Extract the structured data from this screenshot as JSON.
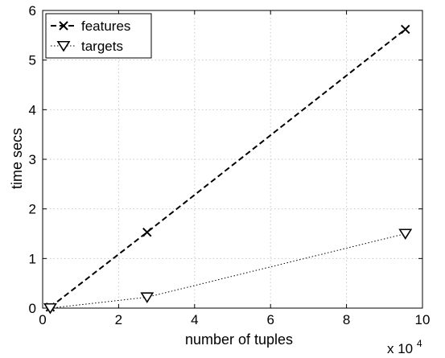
{
  "chart_data": {
    "type": "line",
    "xlabel": "number of tuples",
    "ylabel": "time secs",
    "x_multiplier": "x 10",
    "x_multiplier_exponent": "4",
    "xlim": [
      0,
      100000
    ],
    "ylim": [
      0,
      6
    ],
    "x_ticks": [
      0,
      20000,
      40000,
      60000,
      80000,
      100000
    ],
    "x_tick_labels": [
      "0",
      "2",
      "4",
      "6",
      "8",
      "10"
    ],
    "y_ticks": [
      0,
      1,
      2,
      3,
      4,
      5,
      6
    ],
    "y_tick_labels": [
      "0",
      "1",
      "2",
      "3",
      "4",
      "5",
      "6"
    ],
    "grid": true,
    "legend_position": "top-left",
    "series": [
      {
        "name": "features",
        "line_style": "dashed",
        "marker": "x",
        "color": "#000000",
        "x": [
          2000,
          27500,
          95500
        ],
        "y": [
          0.02,
          1.53,
          5.62
        ]
      },
      {
        "name": "targets",
        "line_style": "dotted",
        "marker": "triangle-down",
        "color": "#000000",
        "x": [
          2000,
          27500,
          95500
        ],
        "y": [
          0.0,
          0.22,
          1.5
        ]
      }
    ]
  }
}
